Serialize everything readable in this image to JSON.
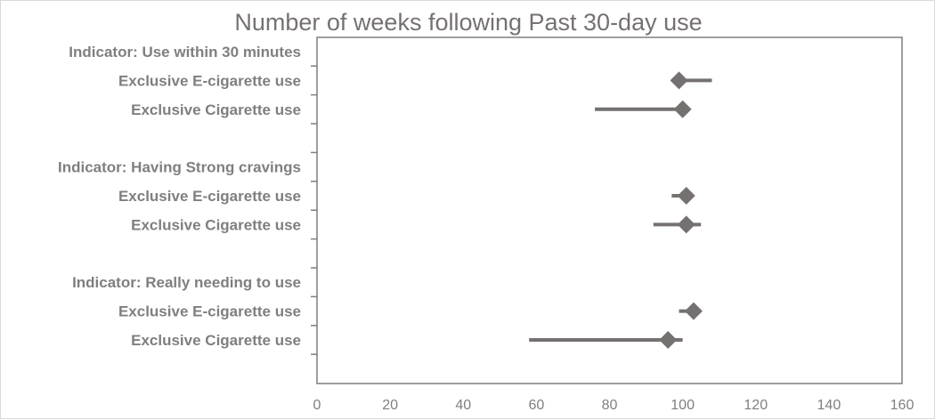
{
  "chart_data": {
    "type": "scatter",
    "title": "Number of weeks following Past 30-day use",
    "xlabel": "",
    "ylabel": "",
    "xlim": [
      0,
      160
    ],
    "x_ticks": [
      "0",
      "20",
      "40",
      "60",
      "80",
      "100",
      "120",
      "140",
      "160"
    ],
    "grid": false,
    "legend": "none",
    "colors": {
      "marker": "#767171",
      "axis": "#7f7f7f",
      "label": "#7f7f7f"
    },
    "rows": [
      {
        "label": "Indicator: Use within 30 minutes",
        "kind": "header"
      },
      {
        "label": "Exclusive E-cigarette use",
        "kind": "data",
        "estimate": 99,
        "ci_low": 97,
        "ci_high": 108
      },
      {
        "label": "Exclusive Cigarette use",
        "kind": "data",
        "estimate": 100,
        "ci_low": 76,
        "ci_high": 100
      },
      {
        "label": "",
        "kind": "blank"
      },
      {
        "label": "Indicator: Having Strong cravings",
        "kind": "header"
      },
      {
        "label": "Exclusive E-cigarette use",
        "kind": "data",
        "estimate": 101,
        "ci_low": 97,
        "ci_high": 101
      },
      {
        "label": "Exclusive Cigarette use",
        "kind": "data",
        "estimate": 101,
        "ci_low": 92,
        "ci_high": 105
      },
      {
        "label": "",
        "kind": "blank"
      },
      {
        "label": "Indicator: Really needing to use",
        "kind": "header"
      },
      {
        "label": "Exclusive E-cigarette use",
        "kind": "data",
        "estimate": 103,
        "ci_low": 99,
        "ci_high": 103
      },
      {
        "label": "Exclusive Cigarette use",
        "kind": "data",
        "estimate": 96,
        "ci_low": 58,
        "ci_high": 100
      }
    ]
  }
}
